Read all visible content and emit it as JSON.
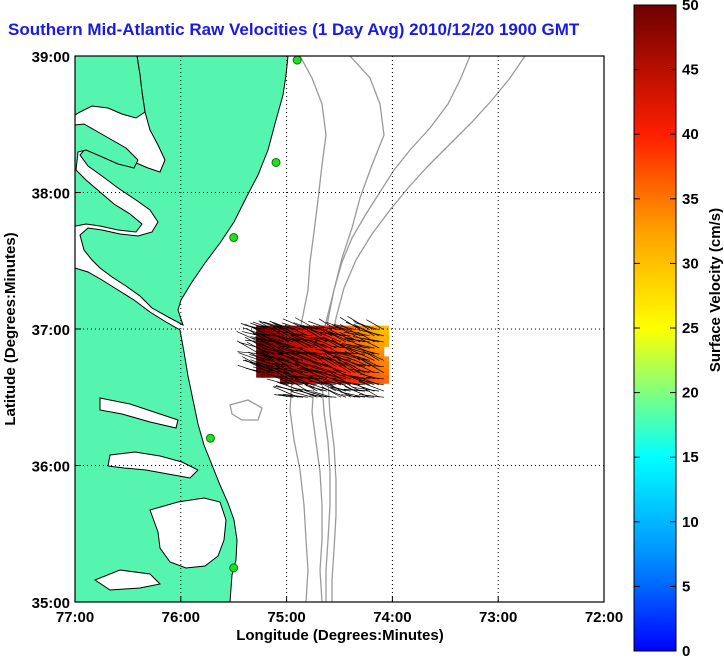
{
  "title": "Southern Mid-Atlantic Raw Velocities (1 Day Avg) 2010/12/20 1900 GMT",
  "map": {
    "xlabel": "Longitude (Degrees:Minutes)",
    "ylabel": "Latitude (Degrees:Minutes)",
    "x_ticks": [
      "77:00",
      "76:00",
      "75:00",
      "74:00",
      "73:00",
      "72:00"
    ],
    "y_ticks": [
      "39:00",
      "38:00",
      "37:00",
      "36:00",
      "35:00"
    ],
    "lon_range": [
      -77,
      -72
    ],
    "lat_range": [
      35,
      39
    ],
    "colors": {
      "land": "#55f5b0",
      "coast": "#000000",
      "bathymetry": "#9a9a9a",
      "station": "#22dd22",
      "vector": "#000000"
    }
  },
  "colorbar": {
    "label": "Surface Velocity (cm/s)",
    "min": 0,
    "max": 50,
    "ticks": [
      "0",
      "5",
      "10",
      "15",
      "20",
      "25",
      "30",
      "35",
      "40",
      "45",
      "50"
    ],
    "colormap": "jet-to-darkred"
  },
  "chart_data": {
    "type": "quiver",
    "xlabel": "Longitude (Degrees:Minutes)",
    "ylabel": "Latitude (Degrees:Minutes)",
    "xlim": [
      -77,
      -72
    ],
    "ylim": [
      35,
      39
    ],
    "velocity_field": {
      "lon_range": [
        -75.25,
        -74.05
      ],
      "lat_range": [
        36.5,
        37.0
      ],
      "speed_range_cm_s": [
        30,
        50
      ],
      "direction": "toward southwest"
    },
    "stations": [
      {
        "lon": -74.9,
        "lat": 38.97
      },
      {
        "lon": -75.1,
        "lat": 38.22
      },
      {
        "lon": -75.5,
        "lat": 37.67
      },
      {
        "lon": -75.72,
        "lat": 36.2
      },
      {
        "lon": -75.5,
        "lat": 35.25
      }
    ]
  }
}
